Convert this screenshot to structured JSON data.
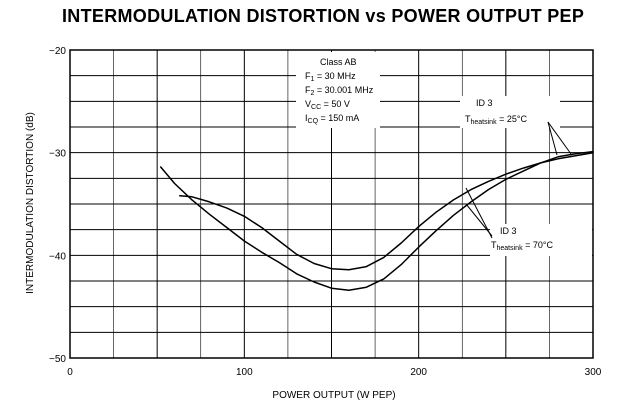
{
  "chart_data": {
    "type": "line",
    "title": "INTERMODULATION DISTORTION vs POWER OUTPUT PEP",
    "xlabel": "POWER OUTPUT (W PEP)",
    "ylabel": "INTERMODULATION DISTORTION (dB)",
    "xlim": [
      0,
      300
    ],
    "ylim": [
      -50,
      -20
    ],
    "x_ticks": [
      0,
      100,
      200,
      300
    ],
    "y_ticks": [
      -20,
      -30,
      -40,
      -50
    ],
    "grid": true,
    "conditions": {
      "class": "Class AB",
      "f1": {
        "main": "F",
        "sub": "1",
        "rest": " = 30 MHz"
      },
      "f2": {
        "main": "F",
        "sub": "2",
        "rest": " = 30.001 MHz"
      },
      "vcc": {
        "main": "V",
        "sub": "CC",
        "rest": " = 50 V"
      },
      "icq": {
        "main": "I",
        "sub": "CQ",
        "rest": " = 150 mA"
      }
    },
    "series": [
      {
        "label_line1": "ID 3",
        "label_main": "T",
        "label_sub": "heatsink",
        "label_rest": " = 25°C",
        "x": [
          52,
          60,
          70,
          80,
          90,
          100,
          110,
          120,
          130,
          140,
          150,
          160,
          170,
          180,
          190,
          200,
          210,
          220,
          230,
          240,
          250,
          260,
          270,
          280,
          290,
          300
        ],
        "values": [
          -31.4,
          -33.0,
          -34.6,
          -36.0,
          -37.3,
          -38.6,
          -39.7,
          -40.7,
          -41.8,
          -42.6,
          -43.2,
          -43.4,
          -43.1,
          -42.3,
          -40.9,
          -39.2,
          -37.6,
          -36.1,
          -34.8,
          -33.6,
          -32.6,
          -31.8,
          -31.0,
          -30.4,
          -30.1,
          -29.9
        ]
      },
      {
        "label_line1": "ID 3",
        "label_main": "T",
        "label_sub": "heatsink",
        "label_rest": " = 70°C",
        "x": [
          63,
          70,
          80,
          90,
          100,
          110,
          120,
          130,
          140,
          150,
          160,
          170,
          180,
          190,
          200,
          210,
          220,
          230,
          240,
          250,
          260,
          270,
          280,
          290,
          300
        ],
        "values": [
          -34.2,
          -34.3,
          -34.8,
          -35.4,
          -36.2,
          -37.3,
          -38.6,
          -39.9,
          -40.8,
          -41.3,
          -41.4,
          -41.1,
          -40.2,
          -38.8,
          -37.2,
          -35.8,
          -34.6,
          -33.6,
          -32.8,
          -32.1,
          -31.5,
          -31.0,
          -30.6,
          -30.3,
          -30.0
        ]
      }
    ]
  }
}
